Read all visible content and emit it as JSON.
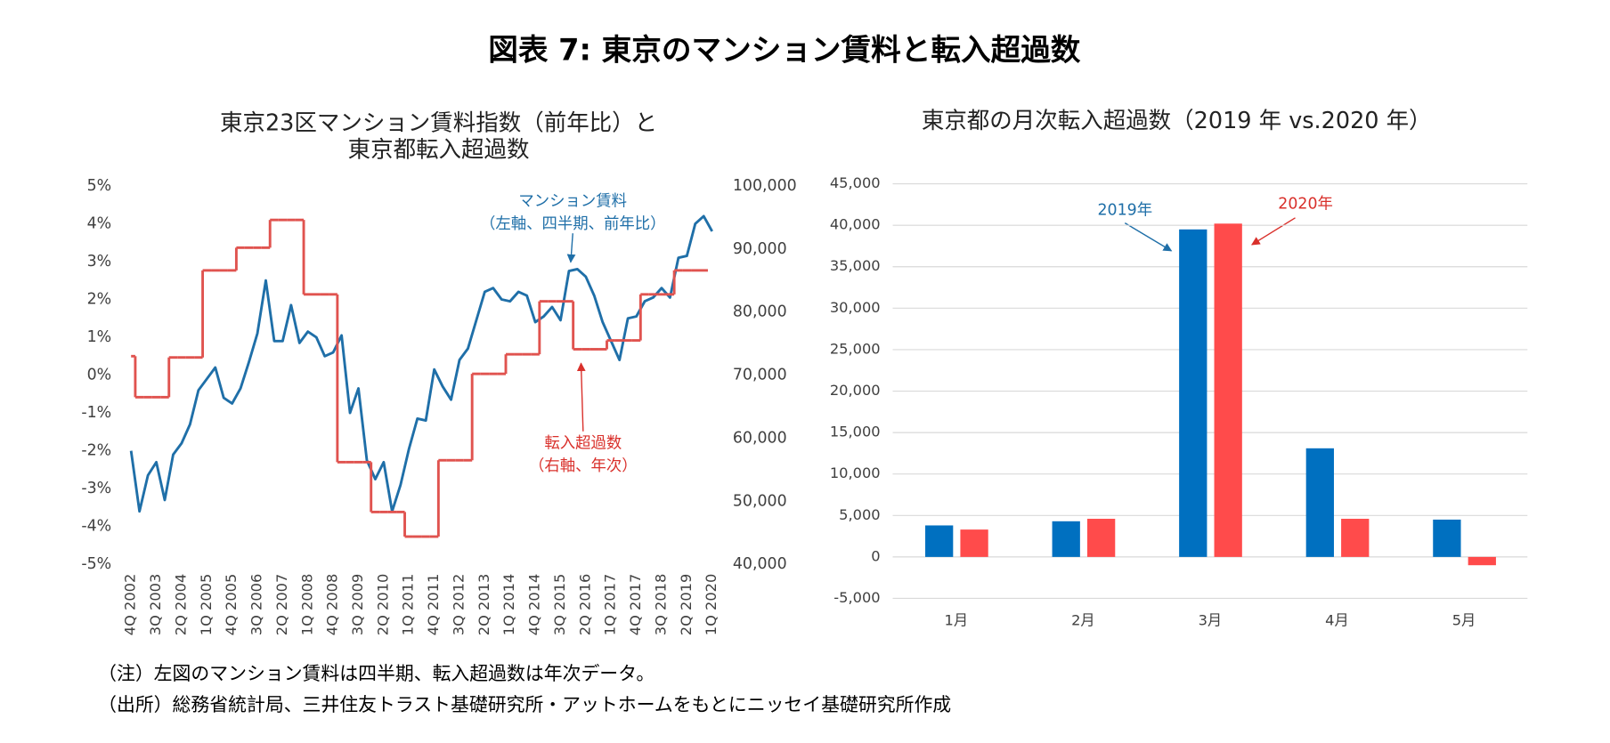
{
  "title": "図表 7: 東京のマンション賃料と転入超過数",
  "chart_data": [
    {
      "type": "line",
      "title": [
        "東京23区マンション賃料指数（前年比）と",
        "東京都転入超過数"
      ],
      "categories": [
        "4Q 2002",
        null,
        null,
        "3Q 2003",
        null,
        null,
        "2Q 2004",
        null,
        null,
        "1Q 2005",
        null,
        null,
        "4Q 2005",
        null,
        null,
        "3Q 2006",
        null,
        null,
        "2Q 2007",
        null,
        null,
        "1Q 2008",
        null,
        null,
        "4Q 2008",
        null,
        null,
        "3Q 2009",
        null,
        null,
        "2Q 2010",
        null,
        null,
        "1Q 2011",
        null,
        null,
        "4Q 2011",
        null,
        null,
        "3Q 2012",
        null,
        null,
        "2Q 2013",
        null,
        null,
        "1Q 2014",
        null,
        null,
        "4Q 2014",
        null,
        null,
        "3Q 2015",
        null,
        null,
        "2Q 2016",
        null,
        null,
        "1Q 2017",
        null,
        null,
        "4Q 2017",
        null,
        null,
        "3Q 2018",
        null,
        null,
        "2Q 2019",
        null,
        null,
        "1Q 2020"
      ],
      "series": [
        {
          "name": "マンション賃料",
          "color": "#1f6fa8",
          "style": "line",
          "values": [
            -2.0,
            -3.6,
            -2.65,
            -2.3,
            -3.3,
            -2.1,
            -1.8,
            -1.3,
            -0.4,
            -0.1,
            0.2,
            -0.6,
            -0.75,
            -0.35,
            0.35,
            1.1,
            2.5,
            0.9,
            0.9,
            1.85,
            0.85,
            1.15,
            1.0,
            0.5,
            0.6,
            1.05,
            -1.0,
            -0.35,
            -2.25,
            -2.75,
            -2.3,
            -3.6,
            -2.9,
            -1.95,
            -1.15,
            -1.2,
            0.15,
            -0.3,
            -0.65,
            0.4,
            0.7,
            1.45,
            2.2,
            2.3,
            2.0,
            1.95,
            2.2,
            2.1,
            1.4,
            1.55,
            1.8,
            1.45,
            2.75,
            2.8,
            2.6,
            2.1,
            1.4,
            0.9,
            0.4,
            1.5,
            1.55,
            1.95,
            2.05,
            2.3,
            2.05,
            3.1,
            3.15,
            4.0,
            4.2,
            3.8
          ]
        },
        {
          "name": "転入超過数",
          "color": "#e0534f",
          "style": "step",
          "axis": "y2",
          "values": [
            73000,
            66500,
            66500,
            66500,
            66500,
            72800,
            72800,
            72800,
            72800,
            86600,
            86600,
            86600,
            86600,
            90200,
            90200,
            90200,
            90200,
            94600,
            94600,
            94600,
            94600,
            82800,
            82800,
            82800,
            82800,
            56200,
            56200,
            56200,
            56200,
            48300,
            48300,
            48300,
            48300,
            44400,
            44400,
            44400,
            44400,
            56500,
            56500,
            56500,
            56500,
            70200,
            70200,
            70200,
            70200,
            73300,
            73300,
            73300,
            73300,
            81700,
            81700,
            81700,
            81700,
            74100,
            74100,
            74100,
            74100,
            75500,
            75500,
            75500,
            75500,
            82800,
            82800,
            82800,
            82800,
            86600,
            86600,
            86600,
            86600,
            null
          ]
        }
      ],
      "annotations": [
        {
          "lines": [
            "マンション賃料",
            "（左軸、四半期、前年比）"
          ],
          "color": "#1f6fa8"
        },
        {
          "lines": [
            "転入超過数",
            "（右軸、年次）"
          ],
          "color": "#d9302b"
        }
      ],
      "ylim": [
        -5,
        5
      ],
      "yticks": [
        {
          "value": -5,
          "label": "-5%"
        },
        {
          "value": -4,
          "label": "-4%"
        },
        {
          "value": -3,
          "label": "-3%"
        },
        {
          "value": -2,
          "label": "-2%"
        },
        {
          "value": -1,
          "label": "-1%"
        },
        {
          "value": 0,
          "label": "0%"
        },
        {
          "value": 1,
          "label": "1%"
        },
        {
          "value": 2,
          "label": "2%"
        },
        {
          "value": 3,
          "label": "3%"
        },
        {
          "value": 4,
          "label": "4%"
        },
        {
          "value": 5,
          "label": "5%"
        }
      ],
      "y2lim": [
        40000,
        100000
      ],
      "y2ticks": [
        {
          "value": 40000,
          "label": "40,000"
        },
        {
          "value": 50000,
          "label": "50,000"
        },
        {
          "value": 60000,
          "label": "60,000"
        },
        {
          "value": 70000,
          "label": "70,000"
        },
        {
          "value": 80000,
          "label": "80,000"
        },
        {
          "value": 90000,
          "label": "90,000"
        },
        {
          "value": 100000,
          "label": "100,000"
        }
      ],
      "grid": false
    },
    {
      "type": "bar",
      "title": [
        "東京都の月次転入超過数（2019 年 vs.2020 年）"
      ],
      "categories": [
        "1月",
        "2月",
        "3月",
        "4月",
        "5月"
      ],
      "series": [
        {
          "name": "2019年",
          "color": "#0070c0",
          "values": [
            3800,
            4300,
            39500,
            13100,
            4500
          ]
        },
        {
          "name": "2020年",
          "color": "#ff4b4b",
          "values": [
            3300,
            4600,
            40200,
            4600,
            -1000
          ]
        }
      ],
      "ylim": [
        -5000,
        45000
      ],
      "yticks": [
        {
          "value": -5000,
          "label": "-5,000"
        },
        0,
        {
          "value": 5000,
          "label": "5,000"
        },
        {
          "value": 10000,
          "label": "10,000"
        },
        {
          "value": 15000,
          "label": "15,000"
        },
        {
          "value": 20000,
          "label": "20,000"
        },
        {
          "value": 25000,
          "label": "25,000"
        },
        {
          "value": 30000,
          "label": "30,000"
        },
        {
          "value": 35000,
          "label": "35,000"
        },
        {
          "value": 40000,
          "label": "40,000"
        },
        {
          "value": 45000,
          "label": "45,000"
        }
      ],
      "grid": true
    }
  ],
  "notes": [
    "（注）左図のマンション賃料は四半期、転入超過数は年次データ。",
    "（出所）総務省統計局、三井住友トラスト基礎研究所・アットホームをもとにニッセイ基礎研究所作成"
  ]
}
